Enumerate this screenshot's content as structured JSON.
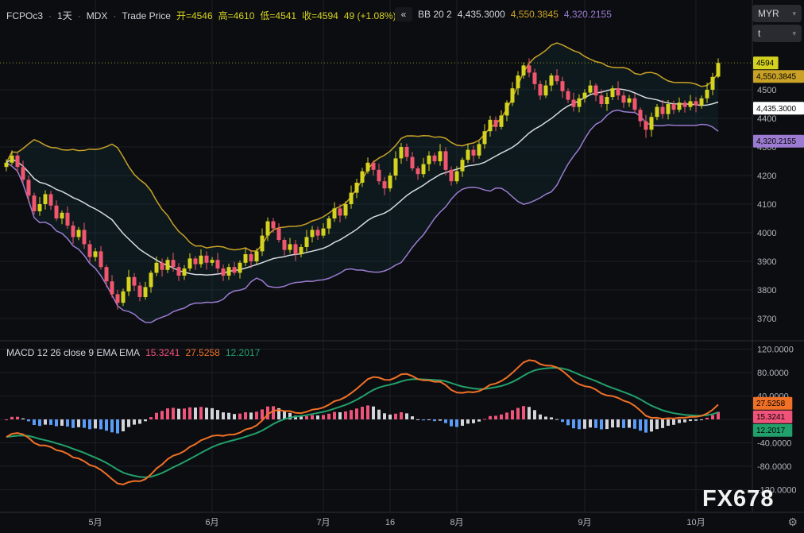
{
  "header": {
    "symbol": "FCPOc3",
    "separator": "·",
    "interval": "1天",
    "exchange": "MDX",
    "series": "Trade Price",
    "open": "开=4546",
    "high": "高=4610",
    "low": "低=4541",
    "close": "收=4594",
    "change": "49 (+1.08%)"
  },
  "bb_legend": {
    "collapse_glyph": "«",
    "title": "BB 20 2",
    "basis": "4,435.3000",
    "upper": "4,550.3845",
    "lower": "4,320.2155"
  },
  "macd_legend": {
    "title": "MACD 12 26 close 9 EMA EMA",
    "hist": "15.3241",
    "macd": "27.5258",
    "signal": "12.2017"
  },
  "toolbar": {
    "currency": "MYR",
    "unit": "t",
    "chevron": "▾"
  },
  "watermark": "FX678",
  "colors": {
    "bg": "#0c0d11",
    "grid": "#1b1e26",
    "separator": "#2a2e39",
    "text": "#d1d4dc",
    "muted": "#787b86",
    "axis_text": "#b2b5be",
    "up": "#d5d320",
    "down": "#f2566f",
    "bb_upper": "#c9a227",
    "bb_basis": "#d7dae0",
    "bb_lower": "#9b7bd1",
    "bb_fill": "rgba(34,138,130,0.10)",
    "macd_line": "#f07026",
    "signal_line": "#22a06b",
    "hist_pos": "#f0537a",
    "hist_neg": "#5b9cf6",
    "hist_weak": "#d2d4da",
    "btn_bg": "#2a2b30",
    "watermark": "#f2f2f2"
  },
  "chart_data": {
    "type": "candlestick",
    "title": "FCPOc3 1天 MDX Trade Price with BB(20,2) and MACD(12,26,9)",
    "x_axis": "daily bars, mid-April to mid-October",
    "last_price": 4594,
    "price_axis_ticks": [
      4500,
      4400,
      4300,
      4200,
      4100,
      4000,
      3900,
      3800,
      3700
    ],
    "time_labels": [
      {
        "text": "5月",
        "i": 16
      },
      {
        "text": "6月",
        "i": 37
      },
      {
        "text": "7月",
        "i": 57
      },
      {
        "text": "16",
        "i": 69
      },
      {
        "text": "8月",
        "i": 81
      },
      {
        "text": "9月",
        "i": 104
      },
      {
        "text": "10月",
        "i": 124
      }
    ],
    "indicators": {
      "bollinger": {
        "length": 20,
        "mult": 2,
        "upper": 4550.3845,
        "basis": 4435.3,
        "lower": 4320.2155
      },
      "macd": {
        "fast": 12,
        "slow": 26,
        "source": "close",
        "signal": 9,
        "macd_value": 27.5258,
        "signal_value": 12.2017,
        "hist_value": 15.3241
      }
    },
    "price_badges": [
      {
        "text": "4594",
        "value": 4594,
        "bg": "#d5d320",
        "fg": "#000000"
      },
      {
        "text": "4,550.3845",
        "value": 4550.3845,
        "bg": "#c9a227",
        "fg": "#000000"
      },
      {
        "text": "4,435.3000",
        "value": 4435.3,
        "bg": "#ffffff",
        "fg": "#000000"
      },
      {
        "text": "4,320.2155",
        "value": 4320.2155,
        "bg": "#9b7bd1",
        "fg": "#000000"
      }
    ],
    "macd_axis_ticks": [
      {
        "v": 120,
        "label": "120.0000"
      },
      {
        "v": 80,
        "label": "80.0000"
      },
      {
        "v": 40,
        "label": "40.0000"
      },
      {
        "v": 0,
        "label": "0.0000"
      },
      {
        "v": -40,
        "label": "-40.0000"
      },
      {
        "v": -80,
        "label": "-80.0000"
      },
      {
        "v": -120,
        "label": "-120.0000"
      }
    ],
    "macd_badges": [
      {
        "text": "27.5258",
        "value": 27.5258,
        "bg": "#f07026",
        "fg": "#000000"
      },
      {
        "text": "15.3241",
        "value": 15.3241,
        "bg": "#f0537a",
        "fg": "#000000"
      },
      {
        "text": "12.2017",
        "value": 12.2017,
        "bg": "#22a06b",
        "fg": "#000000"
      }
    ],
    "candles": [
      [
        4230,
        4257,
        4215,
        4245
      ],
      [
        4245,
        4288,
        4236,
        4270
      ],
      [
        4270,
        4278,
        4210,
        4230
      ],
      [
        4230,
        4252,
        4173,
        4185
      ],
      [
        4185,
        4200,
        4106,
        4130
      ],
      [
        4130,
        4140,
        4064,
        4075
      ],
      [
        4075,
        4125,
        4059,
        4100
      ],
      [
        4100,
        4149,
        4081,
        4135
      ],
      [
        4135,
        4147,
        4080,
        4095
      ],
      [
        4095,
        4113,
        4041,
        4050
      ],
      [
        4050,
        4078,
        4030,
        4070
      ],
      [
        4070,
        4092,
        4013,
        4025
      ],
      [
        4025,
        4040,
        3961,
        3985
      ],
      [
        3985,
        4020,
        3974,
        4010
      ],
      [
        4010,
        4035,
        3944,
        3960
      ],
      [
        3960,
        3974,
        3896,
        3915
      ],
      [
        3915,
        3947,
        3900,
        3935
      ],
      [
        3935,
        3953,
        3871,
        3880
      ],
      [
        3880,
        3888,
        3810,
        3830
      ],
      [
        3830,
        3852,
        3773,
        3785
      ],
      [
        3785,
        3800,
        3731,
        3755
      ],
      [
        3755,
        3805,
        3744,
        3795
      ],
      [
        3795,
        3870,
        3779,
        3845
      ],
      [
        3845,
        3859,
        3796,
        3815
      ],
      [
        3815,
        3827,
        3760,
        3775
      ],
      [
        3775,
        3828,
        3766,
        3810
      ],
      [
        3810,
        3868,
        3790,
        3860
      ],
      [
        3860,
        3917,
        3848,
        3895
      ],
      [
        3895,
        3910,
        3846,
        3870
      ],
      [
        3870,
        3915,
        3859,
        3905
      ],
      [
        3905,
        3930,
        3864,
        3880
      ],
      [
        3880,
        3894,
        3831,
        3850
      ],
      [
        3850,
        3887,
        3835,
        3875
      ],
      [
        3875,
        3928,
        3866,
        3910
      ],
      [
        3910,
        3918,
        3870,
        3890
      ],
      [
        3890,
        3942,
        3878,
        3920
      ],
      [
        3920,
        3935,
        3871,
        3895
      ],
      [
        3895,
        3915,
        3884,
        3905
      ],
      [
        3905,
        3930,
        3859,
        3875
      ],
      [
        3875,
        3889,
        3831,
        3850
      ],
      [
        3850,
        3892,
        3835,
        3880
      ],
      [
        3880,
        3898,
        3851,
        3860
      ],
      [
        3860,
        3903,
        3840,
        3895
      ],
      [
        3895,
        3947,
        3883,
        3925
      ],
      [
        3925,
        3940,
        3876,
        3900
      ],
      [
        3900,
        3945,
        3889,
        3935
      ],
      [
        3935,
        4015,
        3919,
        3990
      ],
      [
        3990,
        4054,
        3971,
        4040
      ],
      [
        4040,
        4052,
        4000,
        4015
      ],
      [
        4015,
        4033,
        3966,
        3975
      ],
      [
        3975,
        3983,
        3920,
        3940
      ],
      [
        3940,
        3982,
        3928,
        3960
      ],
      [
        3960,
        3975,
        3901,
        3925
      ],
      [
        3925,
        3960,
        3914,
        3950
      ],
      [
        3950,
        4010,
        3934,
        3985
      ],
      [
        3985,
        4024,
        3966,
        4010
      ],
      [
        4010,
        4022,
        3975,
        3990
      ],
      [
        3990,
        4033,
        3981,
        4015
      ],
      [
        4015,
        4058,
        3995,
        4050
      ],
      [
        4050,
        4107,
        4038,
        4085
      ],
      [
        4085,
        4100,
        4036,
        4060
      ],
      [
        4060,
        4110,
        4049,
        4100
      ],
      [
        4100,
        4165,
        4084,
        4140
      ],
      [
        4140,
        4189,
        4121,
        4175
      ],
      [
        4175,
        4227,
        4160,
        4215
      ],
      [
        4215,
        4263,
        4206,
        4245
      ],
      [
        4245,
        4253,
        4200,
        4220
      ],
      [
        4220,
        4242,
        4168,
        4180
      ],
      [
        4180,
        4195,
        4131,
        4155
      ],
      [
        4155,
        4210,
        4144,
        4200
      ],
      [
        4200,
        4285,
        4184,
        4260
      ],
      [
        4260,
        4314,
        4241,
        4300
      ],
      [
        4300,
        4312,
        4250,
        4265
      ],
      [
        4265,
        4283,
        4216,
        4225
      ],
      [
        4225,
        4233,
        4185,
        4205
      ],
      [
        4205,
        4262,
        4193,
        4240
      ],
      [
        4240,
        4285,
        4216,
        4270
      ],
      [
        4270,
        4280,
        4239,
        4250
      ],
      [
        4250,
        4310,
        4234,
        4285
      ],
      [
        4285,
        4299,
        4201,
        4220
      ],
      [
        4220,
        4232,
        4165,
        4180
      ],
      [
        4180,
        4233,
        4171,
        4215
      ],
      [
        4215,
        4263,
        4195,
        4255
      ],
      [
        4255,
        4312,
        4243,
        4290
      ],
      [
        4290,
        4305,
        4246,
        4270
      ],
      [
        4270,
        4320,
        4259,
        4310
      ],
      [
        4310,
        4380,
        4294,
        4355
      ],
      [
        4355,
        4409,
        4336,
        4395
      ],
      [
        4395,
        4407,
        4355,
        4370
      ],
      [
        4370,
        4428,
        4361,
        4410
      ],
      [
        4410,
        4463,
        4390,
        4455
      ],
      [
        4455,
        4527,
        4443,
        4505
      ],
      [
        4505,
        4565,
        4481,
        4550
      ],
      [
        4550,
        4595,
        4539,
        4585
      ],
      [
        4585,
        4610,
        4544,
        4560
      ],
      [
        4560,
        4574,
        4501,
        4520
      ],
      [
        4520,
        4532,
        4465,
        4480
      ],
      [
        4480,
        4533,
        4471,
        4515
      ],
      [
        4515,
        4558,
        4495,
        4550
      ],
      [
        4550,
        4572,
        4518,
        4530
      ],
      [
        4530,
        4545,
        4471,
        4495
      ],
      [
        4495,
        4505,
        4454,
        4465
      ],
      [
        4465,
        4490,
        4424,
        4440
      ],
      [
        4440,
        4484,
        4421,
        4470
      ],
      [
        4470,
        4502,
        4455,
        4490
      ],
      [
        4490,
        4533,
        4481,
        4515
      ],
      [
        4515,
        4523,
        4460,
        4480
      ],
      [
        4480,
        4502,
        4438,
        4450
      ],
      [
        4450,
        4490,
        4426,
        4475
      ],
      [
        4475,
        4515,
        4464,
        4505
      ],
      [
        4505,
        4530,
        4464,
        4480
      ],
      [
        4480,
        4494,
        4436,
        4455
      ],
      [
        4455,
        4482,
        4440,
        4470
      ],
      [
        4470,
        4488,
        4421,
        4430
      ],
      [
        4430,
        4438,
        4370,
        4390
      ],
      [
        4390,
        4412,
        4332,
        4360
      ],
      [
        4360,
        4420,
        4336,
        4405
      ],
      [
        4405,
        4450,
        4394,
        4440
      ],
      [
        4440,
        4465,
        4399,
        4415
      ],
      [
        4415,
        4464,
        4396,
        4450
      ],
      [
        4450,
        4462,
        4415,
        4430
      ],
      [
        4430,
        4473,
        4421,
        4455
      ],
      [
        4455,
        4463,
        4420,
        4440
      ],
      [
        4440,
        4482,
        4428,
        4460
      ],
      [
        4460,
        4475,
        4421,
        4445
      ],
      [
        4445,
        4480,
        4434,
        4470
      ],
      [
        4470,
        4525,
        4454,
        4500
      ],
      [
        4500,
        4559,
        4481,
        4545
      ],
      [
        4546,
        4610,
        4541,
        4594
      ]
    ]
  }
}
